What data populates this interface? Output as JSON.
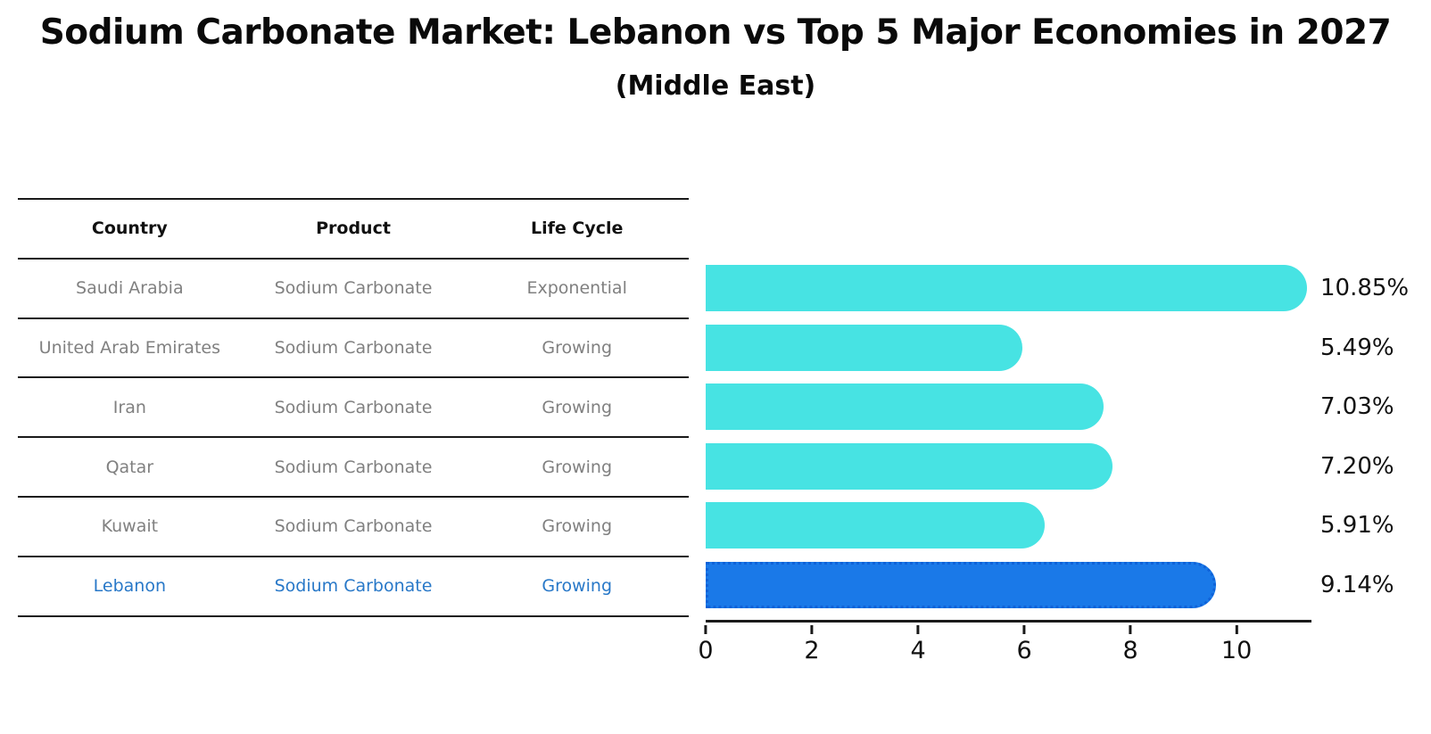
{
  "title": "Sodium Carbonate Market: Lebanon vs Top 5 Major Economies in 2027",
  "subtitle": "(Middle East)",
  "table": {
    "headers": [
      "Country",
      "Product",
      "Life Cycle"
    ],
    "rows": [
      {
        "country": "Saudi Arabia",
        "product": "Sodium Carbonate",
        "life_cycle": "Exponential",
        "highlight": false
      },
      {
        "country": "United Arab Emirates",
        "product": "Sodium Carbonate",
        "life_cycle": "Growing",
        "highlight": false
      },
      {
        "country": "Iran",
        "product": "Sodium Carbonate",
        "life_cycle": "Growing",
        "highlight": false
      },
      {
        "country": "Qatar",
        "product": "Sodium Carbonate",
        "life_cycle": "Growing",
        "highlight": false
      },
      {
        "country": "Kuwait",
        "product": "Sodium Carbonate",
        "life_cycle": "Growing",
        "highlight": false
      },
      {
        "country": "Lebanon",
        "product": "Sodium Carbonate",
        "life_cycle": "Growing",
        "highlight": true
      }
    ]
  },
  "chart_data": {
    "type": "bar",
    "orientation": "horizontal",
    "categories": [
      "Saudi Arabia",
      "United Arab Emirates",
      "Iran",
      "Qatar",
      "Kuwait",
      "Lebanon"
    ],
    "values": [
      10.85,
      5.49,
      7.03,
      7.2,
      5.91,
      9.14
    ],
    "value_labels": [
      "10.85%",
      "5.49%",
      "7.03%",
      "7.20%",
      "5.91%",
      "9.14%"
    ],
    "x_ticks": [
      0,
      2,
      4,
      6,
      8,
      10
    ],
    "x_tick_labels": [
      "0",
      "2",
      "4",
      "6",
      "8",
      "10"
    ],
    "xlim": [
      0,
      11.41
    ],
    "grid": false,
    "legend": "none",
    "highlight_index": 5,
    "title": "Sodium Carbonate Market: Lebanon vs Top 5 Major Economies in 2027",
    "xlabel": "",
    "ylabel": ""
  },
  "colors": {
    "bar": "#47e3e3",
    "highlight_bar": "#1a79e8",
    "highlight_edge": "#0f62d8",
    "highlight_text": "#2878c8",
    "table_text": "#808080",
    "header_text": "#111111",
    "line": "#1a1a1a"
  }
}
